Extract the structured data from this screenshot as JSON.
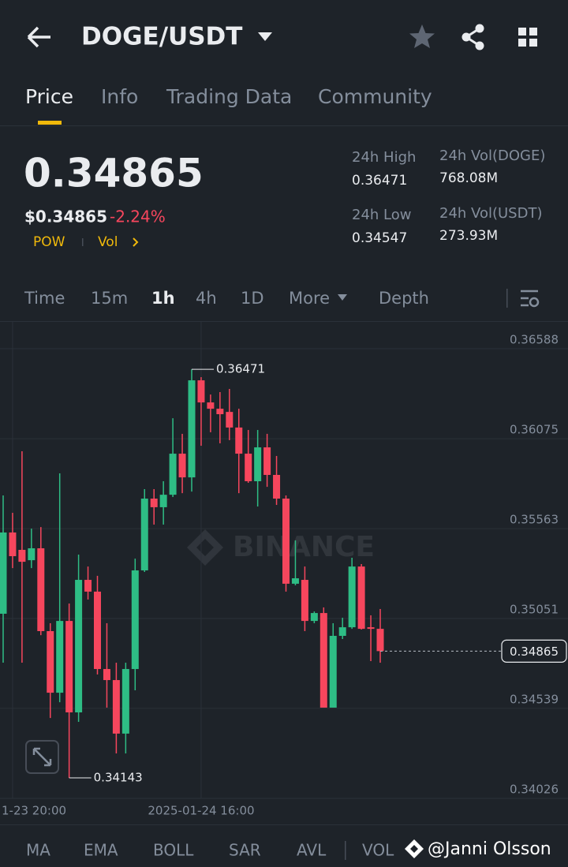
{
  "header": {
    "title": "DOGE/USDT"
  },
  "tabs": [
    "Price",
    "Info",
    "Trading Data",
    "Community"
  ],
  "price": {
    "last": "0.34865",
    "usd": "$0.34865",
    "change": "-2.24%",
    "tags": [
      "POW",
      "Vol"
    ]
  },
  "stats": [
    {
      "label": "24h High",
      "value": "0.36471"
    },
    {
      "label": "24h Vol(DOGE)",
      "value": "768.08M"
    },
    {
      "label": "24h Low",
      "value": "0.34547"
    },
    {
      "label": "24h Vol(USDT)",
      "value": "273.93M"
    }
  ],
  "intervals": [
    "Time",
    "15m",
    "1h",
    "4h",
    "1D",
    "More",
    "Depth"
  ],
  "indicators": [
    "MA",
    "EMA",
    "BOLL",
    "SAR",
    "AVL",
    "VOL"
  ],
  "watermark": "@Janni Olsson",
  "chart": {
    "type": "candlestick",
    "watermark": "BINANCE",
    "categories": [
      null,
      "1-23 20:00",
      null,
      null,
      null,
      null,
      null,
      null,
      null,
      null,
      null,
      null,
      null,
      null,
      null,
      null,
      null,
      null,
      null,
      null,
      null,
      "2025-01-24 16:00",
      null,
      null,
      null,
      null,
      null,
      null,
      null,
      null,
      null,
      null,
      null,
      null,
      null,
      null,
      null,
      null,
      null,
      null,
      null
    ],
    "open": [
      0.35078,
      0.35541,
      0.35442,
      0.35383,
      0.35451,
      0.34979,
      0.34628,
      0.35037,
      0.34516,
      0.35271,
      0.35204,
      0.34763,
      0.347,
      0.34395,
      0.34763,
      0.35325,
      0.35734,
      0.35685,
      0.35756,
      0.3599,
      0.35855,
      0.36408,
      0.36282,
      0.36246,
      0.36228,
      0.36139,
      0.3599,
      0.35833,
      0.36026,
      0.35869,
      0.35734,
      0.35249,
      0.35271,
      0.35037,
      0.35082,
      0.34543,
      0.34952,
      0.35001,
      0.35347,
      0.35001,
      0.34992
    ],
    "high": [
      0.35752,
      0.35653,
      0.36004,
      0.35563,
      0.35572,
      0.35024,
      0.35878,
      0.35136,
      0.35415,
      0.35347,
      0.35294,
      0.35024,
      0.34799,
      0.34799,
      0.35392,
      0.35788,
      0.35788,
      0.35833,
      0.36192,
      0.36103,
      0.36471,
      0.36426,
      0.36327,
      0.36341,
      0.36359,
      0.36246,
      0.36125,
      0.36125,
      0.36103,
      0.35977,
      0.35752,
      0.35496,
      0.35347,
      0.35091,
      0.35114,
      0.35024,
      0.35055,
      0.35397,
      0.35361,
      0.35069,
      0.35105
    ],
    "low": [
      0.34799,
      0.35338,
      0.34799,
      0.35338,
      0.34956,
      0.34484,
      0.34574,
      0.34143,
      0.34462,
      0.35159,
      0.34732,
      0.34543,
      0.34282,
      0.34282,
      0.34642,
      0.35316,
      0.35586,
      0.35586,
      0.35743,
      0.35765,
      0.35774,
      0.36035,
      0.36112,
      0.36049,
      0.36067,
      0.35765,
      0.35824,
      0.35689,
      0.35801,
      0.35698,
      0.35204,
      0.3524,
      0.34979,
      0.35024,
      0.34543,
      0.34543,
      0.34934,
      0.34992,
      0.34988,
      0.34808,
      0.34799
    ],
    "close": [
      0.35541,
      0.35406,
      0.35374,
      0.35451,
      0.34979,
      0.34628,
      0.35037,
      0.34516,
      0.35271,
      0.35204,
      0.34763,
      0.347,
      0.34395,
      0.34763,
      0.35325,
      0.35734,
      0.35685,
      0.35756,
      0.3599,
      0.35855,
      0.36408,
      0.36282,
      0.36246,
      0.36215,
      0.36139,
      0.3599,
      0.35833,
      0.36026,
      0.35869,
      0.35734,
      0.35249,
      0.3528,
      0.35037,
      0.35082,
      0.34543,
      0.34952,
      0.35001,
      0.35347,
      0.34992,
      0.34992,
      0.34865
    ],
    "ylim": [
      0.34026,
      0.36741
    ],
    "yticks": [
      0.36588,
      0.36075,
      0.35563,
      0.35051,
      0.34539,
      0.34026
    ],
    "grid": true,
    "up_color": "#2ebd85",
    "down_color": "#f6465d",
    "high_marker": 0.36471,
    "low_marker": 0.34143,
    "last_price": 0.34865
  }
}
